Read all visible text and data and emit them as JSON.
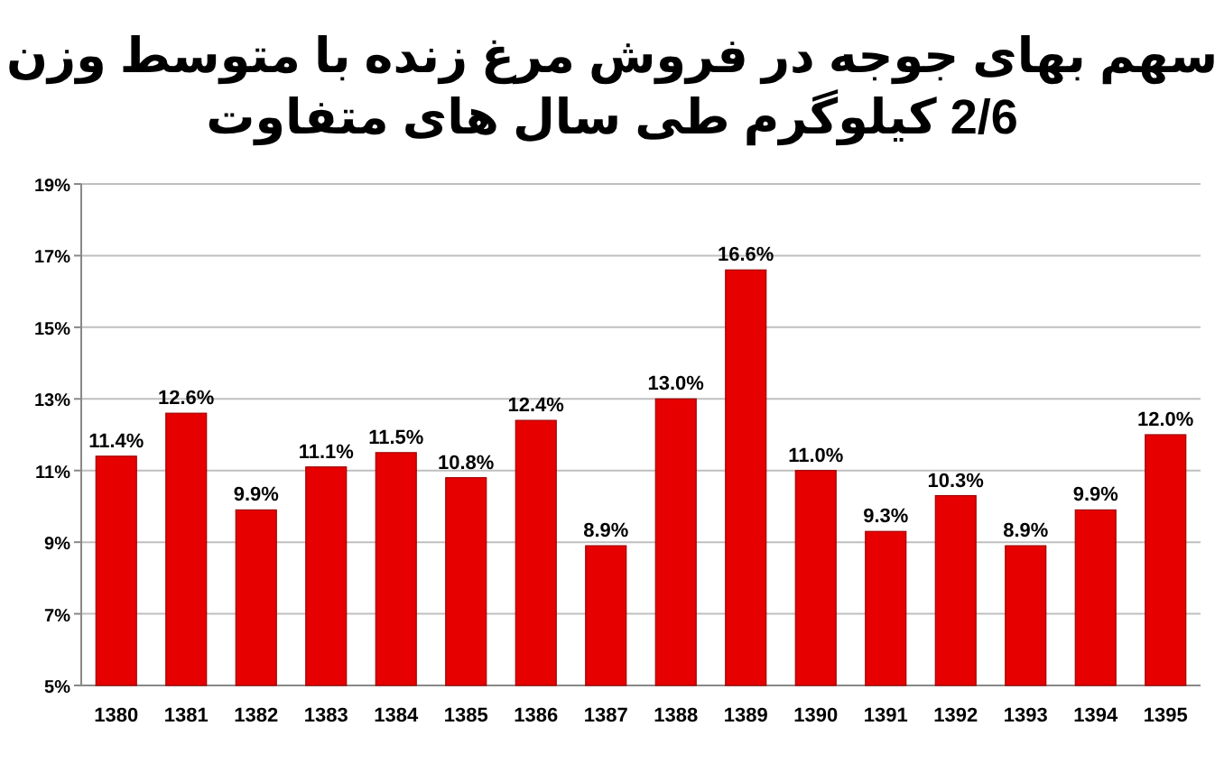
{
  "chart_data": {
    "type": "bar",
    "title": "سهم بهای جوجه در فروش مرغ زنده با متوسط وزن\n2/6 کیلوگرم طی سال های متفاوت",
    "categories": [
      "1380",
      "1381",
      "1382",
      "1383",
      "1384",
      "1385",
      "1386",
      "1387",
      "1388",
      "1389",
      "1390",
      "1391",
      "1392",
      "1393",
      "1394",
      "1395"
    ],
    "values": [
      11.4,
      12.6,
      9.9,
      11.1,
      11.5,
      10.8,
      12.4,
      8.9,
      13.0,
      16.6,
      11.0,
      9.3,
      10.3,
      8.9,
      9.9,
      12.0
    ],
    "value_labels": [
      "11.4%",
      "12.6%",
      "9.9%",
      "11.1%",
      "11.5%",
      "10.8%",
      "12.4%",
      "8.9%",
      "13.0%",
      "16.6%",
      "11.0%",
      "9.3%",
      "10.3%",
      "8.9%",
      "9.9%",
      "12.0%"
    ],
    "color": "#e60000",
    "ylim": [
      5,
      19
    ],
    "yticks": [
      {
        "value": 5,
        "label": "5%"
      },
      {
        "value": 7,
        "label": "7%"
      },
      {
        "value": 9,
        "label": "9%"
      },
      {
        "value": 11,
        "label": "11%"
      },
      {
        "value": 13,
        "label": "13%"
      },
      {
        "value": 15,
        "label": "15%"
      },
      {
        "value": 17,
        "label": "17%"
      },
      {
        "value": 19,
        "label": "19%"
      }
    ],
    "grid": "y"
  }
}
